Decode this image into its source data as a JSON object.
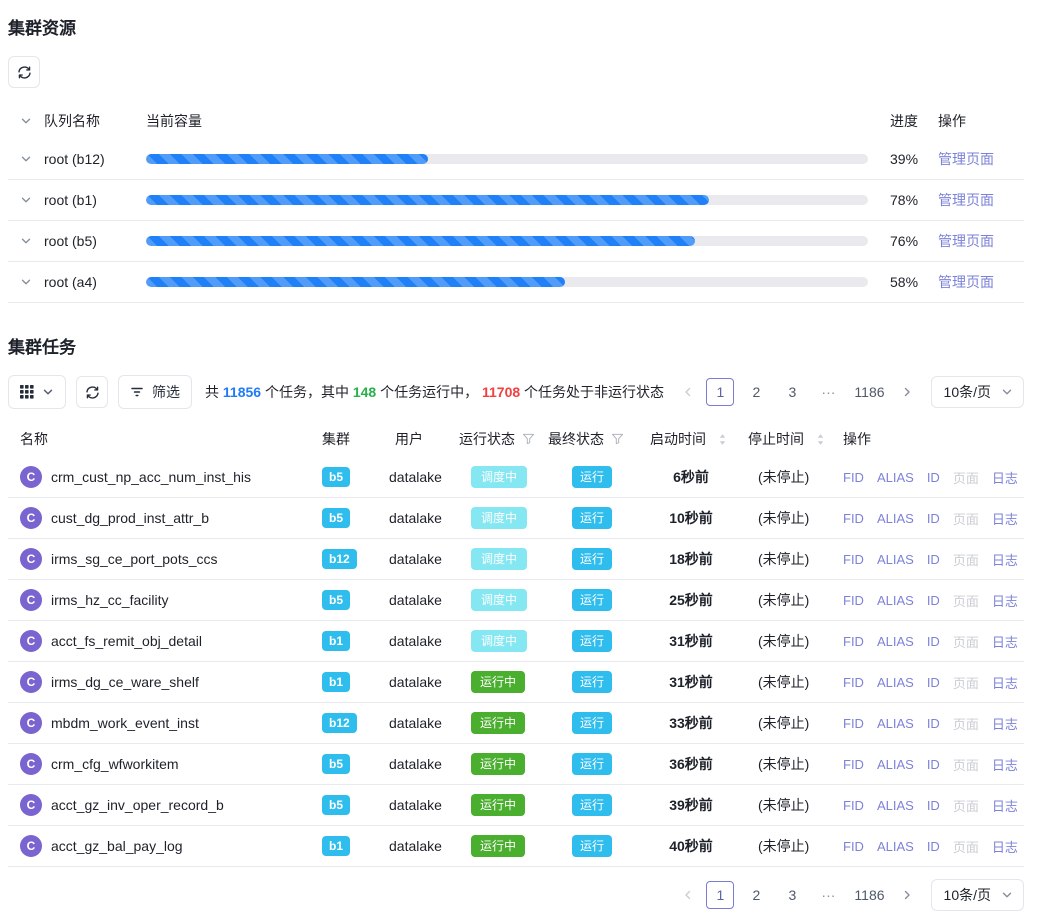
{
  "cluster_resources": {
    "title": "集群资源",
    "columns": {
      "queue": "队列名称",
      "capacity": "当前容量",
      "progress": "进度",
      "operation": "操作"
    },
    "action_label": "管理页面",
    "rows": [
      {
        "queue": "root (b12)",
        "percent_label": "39%",
        "percent_value": 39
      },
      {
        "queue": "root (b1)",
        "percent_label": "78%",
        "percent_value": 78
      },
      {
        "queue": "root (b5)",
        "percent_label": "76%",
        "percent_value": 76
      },
      {
        "queue": "root (a4)",
        "percent_label": "58%",
        "percent_value": 58
      }
    ]
  },
  "cluster_tasks": {
    "title": "集群任务",
    "toolbar": {
      "filter_label": "筛选"
    },
    "summary": {
      "prefix": "共 ",
      "total": "11856",
      "mid1": " 个任务，其中 ",
      "running": "148",
      "mid2": " 个任务运行中， ",
      "stopped": "11708",
      "suffix": " 个任务处于非运行状态"
    },
    "columns": {
      "name": "名称",
      "cluster": "集群",
      "user": "用户",
      "run_status": "运行状态",
      "final_status": "最终状态",
      "start_time": "启动时间",
      "stop_time": "停止时间",
      "operation": "操作"
    },
    "actions": [
      {
        "key": "fid",
        "label": "FID",
        "enabled": true
      },
      {
        "key": "alias",
        "label": "ALIAS",
        "enabled": true
      },
      {
        "key": "id",
        "label": "ID",
        "enabled": true
      },
      {
        "key": "page",
        "label": "页面",
        "enabled": false
      },
      {
        "key": "log",
        "label": "日志",
        "enabled": true
      }
    ],
    "rows": [
      {
        "avatar": "C",
        "name": "crm_cust_np_acc_num_inst_his",
        "cluster": "b5",
        "user": "datalake",
        "run_status": "调度中",
        "run_status_type": "scheduling",
        "final_status": "运行",
        "start_time": "6秒前",
        "stop_time": "(未停止)"
      },
      {
        "avatar": "C",
        "name": "cust_dg_prod_inst_attr_b",
        "cluster": "b5",
        "user": "datalake",
        "run_status": "调度中",
        "run_status_type": "scheduling",
        "final_status": "运行",
        "start_time": "10秒前",
        "stop_time": "(未停止)"
      },
      {
        "avatar": "C",
        "name": "irms_sg_ce_port_pots_ccs",
        "cluster": "b12",
        "user": "datalake",
        "run_status": "调度中",
        "run_status_type": "scheduling",
        "final_status": "运行",
        "start_time": "18秒前",
        "stop_time": "(未停止)"
      },
      {
        "avatar": "C",
        "name": "irms_hz_cc_facility",
        "cluster": "b5",
        "user": "datalake",
        "run_status": "调度中",
        "run_status_type": "scheduling",
        "final_status": "运行",
        "start_time": "25秒前",
        "stop_time": "(未停止)"
      },
      {
        "avatar": "C",
        "name": "acct_fs_remit_obj_detail",
        "cluster": "b1",
        "user": "datalake",
        "run_status": "调度中",
        "run_status_type": "scheduling",
        "final_status": "运行",
        "start_time": "31秒前",
        "stop_time": "(未停止)"
      },
      {
        "avatar": "C",
        "name": "irms_dg_ce_ware_shelf",
        "cluster": "b1",
        "user": "datalake",
        "run_status": "运行中",
        "run_status_type": "running",
        "final_status": "运行",
        "start_time": "31秒前",
        "stop_time": "(未停止)"
      },
      {
        "avatar": "C",
        "name": "mbdm_work_event_inst",
        "cluster": "b12",
        "user": "datalake",
        "run_status": "运行中",
        "run_status_type": "running",
        "final_status": "运行",
        "start_time": "33秒前",
        "stop_time": "(未停止)"
      },
      {
        "avatar": "C",
        "name": "crm_cfg_wfworkitem",
        "cluster": "b5",
        "user": "datalake",
        "run_status": "运行中",
        "run_status_type": "running",
        "final_status": "运行",
        "start_time": "36秒前",
        "stop_time": "(未停止)"
      },
      {
        "avatar": "C",
        "name": "acct_gz_inv_oper_record_b",
        "cluster": "b5",
        "user": "datalake",
        "run_status": "运行中",
        "run_status_type": "running",
        "final_status": "运行",
        "start_time": "39秒前",
        "stop_time": "(未停止)"
      },
      {
        "avatar": "C",
        "name": "acct_gz_bal_pay_log",
        "cluster": "b1",
        "user": "datalake",
        "run_status": "运行中",
        "run_status_type": "running",
        "final_status": "运行",
        "start_time": "40秒前",
        "stop_time": "(未停止)"
      }
    ]
  },
  "pagination": {
    "items": [
      {
        "label": "1",
        "type": "page",
        "active": true
      },
      {
        "label": "2",
        "type": "page",
        "active": false
      },
      {
        "label": "3",
        "type": "page",
        "active": false
      },
      {
        "label": "···",
        "type": "ellipsis",
        "active": false
      },
      {
        "label": "1186",
        "type": "page",
        "active": false
      }
    ],
    "page_size_label": "10条/页"
  },
  "colors": {
    "primary_link": "#7d82d8",
    "progress_bar": "#2080f7",
    "cluster_badge": "#2fbdee",
    "scheduling_badge": "#85e7f2",
    "running_badge": "#4aae2f",
    "total_blue": "#1f7bf7",
    "running_green": "#27b148",
    "stopped_red": "#f04040"
  }
}
